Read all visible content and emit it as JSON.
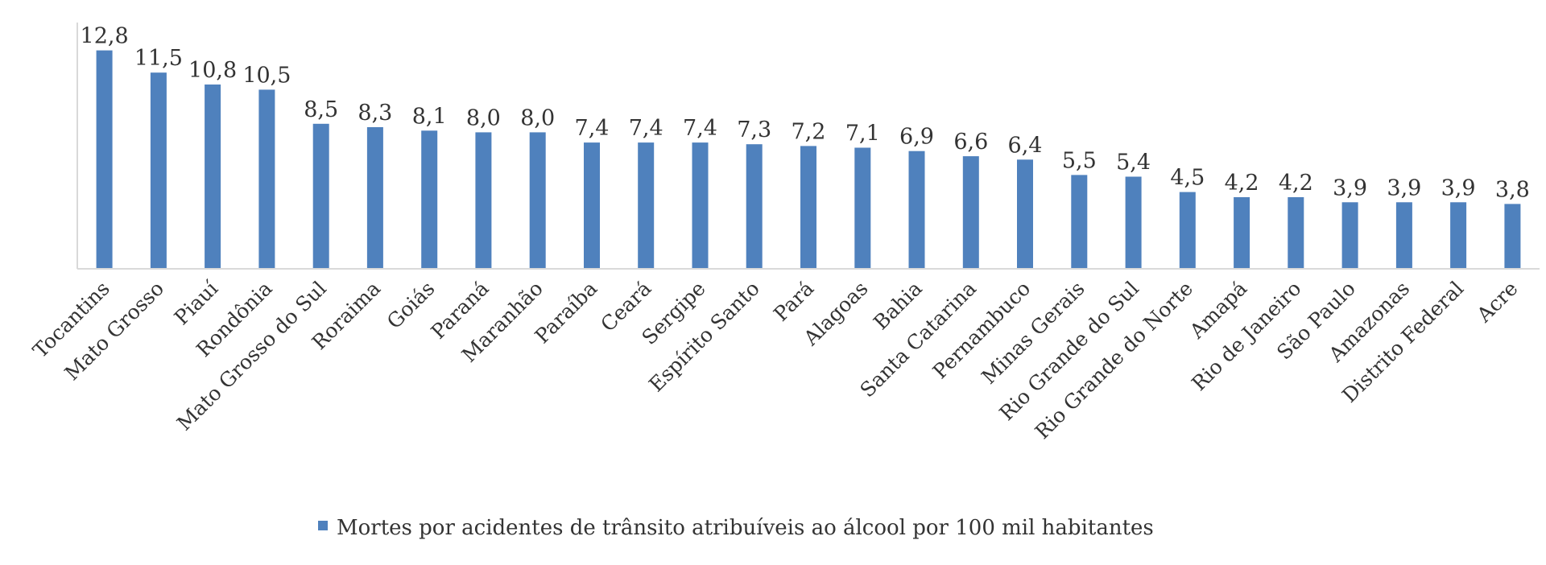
{
  "chart_data": {
    "type": "bar",
    "categories": [
      "Tocantins",
      "Mato Grosso",
      "Piauí",
      "Rondônia",
      "Mato Grosso do Sul",
      "Roraima",
      "Goiás",
      "Paraná",
      "Maranhão",
      "Paraíba",
      "Ceará",
      "Sergipe",
      "Espírito Santo",
      "Pará",
      "Alagoas",
      "Bahia",
      "Santa Catarina",
      "Pernambuco",
      "Minas Gerais",
      "Rio Grande do Sul",
      "Rio Grande do Norte",
      "Amapá",
      "Rio de Janeiro",
      "São Paulo",
      "Amazonas",
      "Distrito Federal",
      "Acre"
    ],
    "series": [
      {
        "name": "Mortes por acidentes de trânsito atribuíveis ao álcool por 100 mil habitantes",
        "values": [
          12.8,
          11.5,
          10.8,
          10.5,
          8.5,
          8.3,
          8.1,
          8.0,
          8.0,
          7.4,
          7.4,
          7.4,
          7.3,
          7.2,
          7.1,
          6.9,
          6.6,
          6.4,
          5.5,
          5.4,
          4.5,
          4.2,
          4.2,
          3.9,
          3.9,
          3.9,
          3.8
        ],
        "labels": [
          "12,8",
          "11,5",
          "10,8",
          "10,5",
          "8,5",
          "8,3",
          "8,1",
          "8,0",
          "8,0",
          "7,4",
          "7,4",
          "7,4",
          "7,3",
          "7,2",
          "7,1",
          "6,9",
          "6,6",
          "6,4",
          "5,5",
          "5,4",
          "4,5",
          "4,2",
          "4,2",
          "3,9",
          "3,9",
          "3,9",
          "3,8"
        ],
        "color": "#4f81bd"
      }
    ],
    "axis_color": "#d9d9d9",
    "legend": "bottom",
    "grid": false
  }
}
